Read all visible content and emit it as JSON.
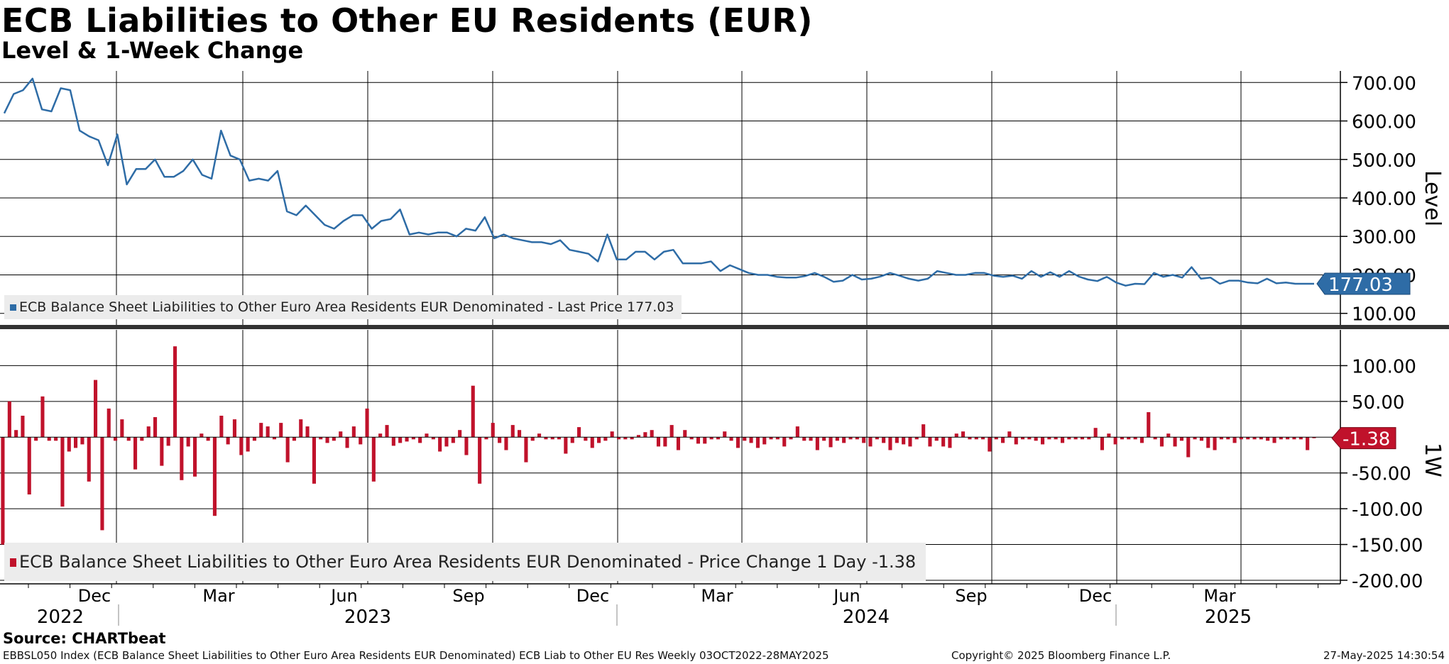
{
  "title": "ECB Liabilities to Other EU Residents (EUR)",
  "subtitle": "Level & 1-Week Change",
  "legends": {
    "top": "ECB Balance Sheet Liabilities to Other Euro Area Residents EUR Denominated - Last Price 177.03",
    "bottom": "ECB Balance Sheet Liabilities to Other Euro Area Residents EUR Denominated - Price Change 1 Day -1.38"
  },
  "source": "Source: CHARTbeat",
  "footer": {
    "left": "EBBSL050 Index (ECB Balance Sheet Liabilities to Other Euro Area Residents EUR Denominated) ECB Liab to Other EU Res  Weekly 03OCT2022-28MAY2025",
    "copyright": "Copyright© 2025 Bloomberg Finance L.P.",
    "timestamp": "27-May-2025 14:30:54"
  },
  "colors": {
    "level": "#2e6ca6",
    "change": "#c0122b",
    "grid": "#000000"
  },
  "chart_data": [
    {
      "type": "line",
      "ylabel": "Level",
      "ylim": [
        70,
        730
      ],
      "yticks": [
        "700.00",
        "600.00",
        "500.00",
        "400.00",
        "300.00",
        "200.00",
        "100.00"
      ],
      "ytick_values": [
        700,
        600,
        500,
        400,
        300,
        200,
        100
      ],
      "last_value_label": "177.03",
      "series": [
        {
          "values": [
            620,
            670,
            680,
            710,
            630,
            625,
            685,
            680,
            575,
            560,
            550,
            485,
            565,
            435,
            475,
            475,
            500,
            455,
            455,
            470,
            500,
            460,
            450,
            575,
            510,
            500,
            445,
            450,
            445,
            470,
            365,
            355,
            380,
            355,
            330,
            320,
            340,
            355,
            355,
            320,
            340,
            345,
            370,
            305,
            310,
            305,
            310,
            310,
            300,
            320,
            315,
            350,
            295,
            305,
            295,
            290,
            285,
            285,
            280,
            290,
            265,
            260,
            255,
            235,
            305,
            240,
            240,
            260,
            260,
            240,
            260,
            265,
            230,
            230,
            230,
            235,
            210,
            225,
            215,
            205,
            200,
            200,
            195,
            193,
            193,
            197,
            205,
            195,
            182,
            185,
            200,
            188,
            190,
            196,
            205,
            198,
            190,
            185,
            190,
            210,
            205,
            200,
            200,
            205,
            205,
            198,
            195,
            198,
            190,
            210,
            195,
            207,
            195,
            210,
            196,
            188,
            184,
            195,
            180,
            172,
            177,
            176,
            205,
            195,
            200,
            193,
            220,
            190,
            193,
            177,
            185,
            185,
            180,
            178,
            190,
            178,
            180,
            177,
            177,
            177
          ]
        }
      ]
    },
    {
      "type": "bar",
      "ylabel": "1W",
      "ylim": [
        -205,
        150
      ],
      "yticks": [
        "100.00",
        "50.00",
        "-50.00",
        "-100.00",
        "-150.00",
        "-200.00"
      ],
      "ytick_values": [
        100,
        50,
        -50,
        -100,
        -150,
        -200
      ],
      "last_value_label": "-1.38",
      "series": [
        {
          "values": [
            -150,
            50,
            10,
            30,
            -80,
            -5,
            57,
            -5,
            -5,
            -97,
            -20,
            -15,
            -10,
            -62,
            80,
            -130,
            40,
            -5,
            25,
            -5,
            -45,
            -5,
            15,
            28,
            -40,
            -12,
            127,
            -60,
            -13,
            -55,
            5,
            -5,
            -110,
            30,
            -10,
            25,
            -25,
            -20,
            -5,
            20,
            15,
            -3,
            20,
            -35,
            -5,
            25,
            15,
            -65,
            -3,
            -8,
            -5,
            8,
            -15,
            15,
            -10,
            40,
            -62,
            5,
            17,
            -12,
            -8,
            -6,
            -3,
            -8,
            5,
            -3,
            -20,
            -13,
            -8,
            10,
            -25,
            72,
            -65,
            -3,
            20,
            -8,
            -18,
            17,
            10,
            -35,
            -5,
            5,
            -3,
            -3,
            -3,
            -23,
            -8,
            14,
            -5,
            -15,
            -8,
            -5,
            8,
            -3,
            -3,
            -3,
            3,
            7,
            10,
            -13,
            -13,
            17,
            -18,
            10,
            -3,
            -9,
            -9,
            -3,
            -3,
            8,
            -5,
            -15,
            -5,
            -8,
            -15,
            -10,
            -3,
            -3,
            -13,
            -3,
            15,
            -5,
            -5,
            -18,
            -5,
            -14,
            -5,
            -8,
            -3,
            -3,
            -8,
            -13,
            -3,
            -8,
            -18,
            -8,
            -10,
            -13,
            -3,
            18,
            -13,
            -5,
            -13,
            -15,
            5,
            8,
            -3,
            -3,
            -3,
            -20,
            -3,
            -8,
            8,
            -10,
            -3,
            -3,
            -5,
            -10,
            -3,
            -3,
            -8,
            -3,
            -3,
            -3,
            -3,
            13,
            -18,
            5,
            -10,
            -3,
            -3,
            -3,
            -8,
            35,
            -3,
            -13,
            5,
            -13,
            -5,
            -28,
            -3,
            -5,
            -15,
            -18,
            -3,
            -3,
            -8,
            -3,
            -3,
            -3,
            -3,
            -5,
            -8,
            -3,
            -3,
            -3,
            -3,
            -18,
            -1.38
          ]
        }
      ]
    }
  ],
  "time_axis": {
    "months": [
      "Dec",
      "Mar",
      "Jun",
      "Sep",
      "Dec",
      "Mar",
      "Jun",
      "Sep",
      "Dec",
      "Mar"
    ],
    "years": [
      "2022",
      "2023",
      "2024",
      "2025"
    ]
  }
}
